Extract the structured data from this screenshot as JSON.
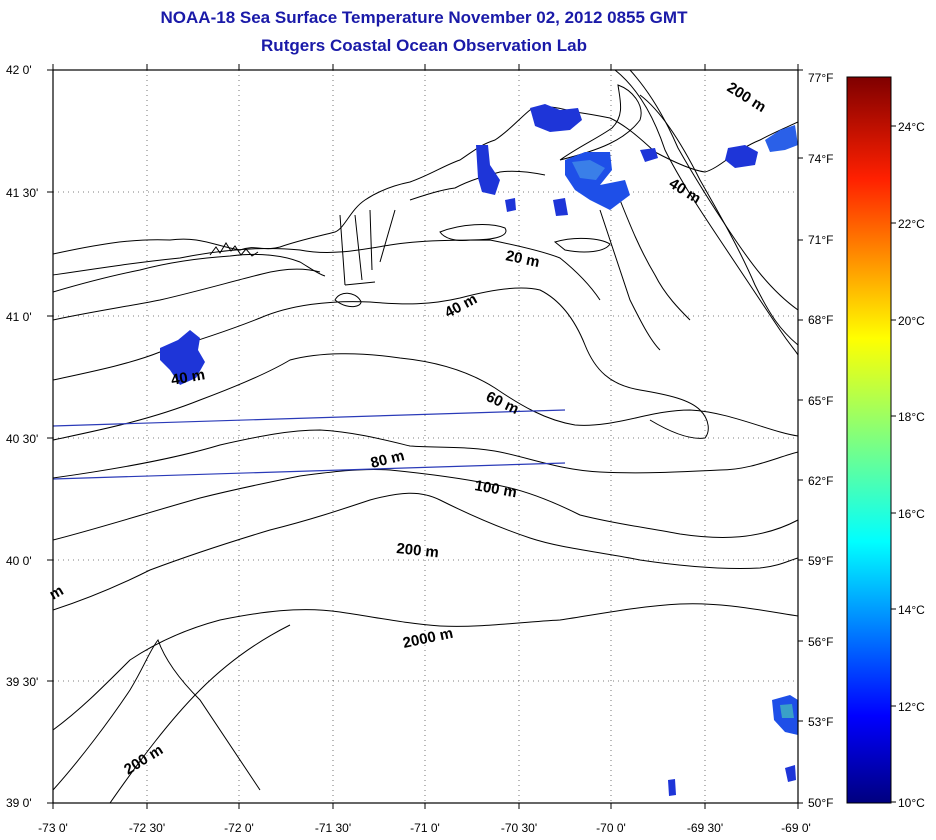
{
  "title": "NOAA-18 Sea Surface Temperature November 02, 2012 0855 GMT",
  "subtitle": "Rutgers Coastal Ocean Observation Lab",
  "lon_labels": [
    "-73 0'",
    "-72 30'",
    "-72 0'",
    "-71 30'",
    "-71 0'",
    "-70 30'",
    "-70 0'",
    "-69 30'",
    "-69 0'"
  ],
  "lat_labels": [
    "42 0'",
    "41 30'",
    "41 0'",
    "40 30'",
    "40 0'",
    "39 30'",
    "39 0'"
  ],
  "fahrenheit_labels": [
    "77°F",
    "74°F",
    "71°F",
    "68°F",
    "65°F",
    "62°F",
    "59°F",
    "56°F",
    "53°F",
    "50°F"
  ],
  "celsius_labels": [
    "24°C",
    "22°C",
    "20°C",
    "18°C",
    "16°C",
    "14°C",
    "12°C",
    "10°C"
  ],
  "contour_labels": [
    "20 m",
    "40 m",
    "40 m",
    "60 m",
    "80 m",
    "100 m",
    "200 m",
    "2000 m",
    "200 m",
    "200 m",
    "40 m",
    "m"
  ],
  "colors": {
    "title": "#1a1aa8",
    "colormap": [
      "#00007f",
      "#0000ff",
      "#007fff",
      "#00ffff",
      "#7fff7f",
      "#ffff00",
      "#ff7f00",
      "#ff0000",
      "#7f0000"
    ],
    "sst_patch": "#1e35d8",
    "ship_track": "#2a3ab8"
  },
  "map_extent": {
    "lon": [
      -73,
      -69
    ],
    "lat": [
      39,
      42
    ]
  },
  "colorbar_range": {
    "celsius": [
      10,
      25
    ],
    "fahrenheit": [
      50,
      77
    ]
  }
}
